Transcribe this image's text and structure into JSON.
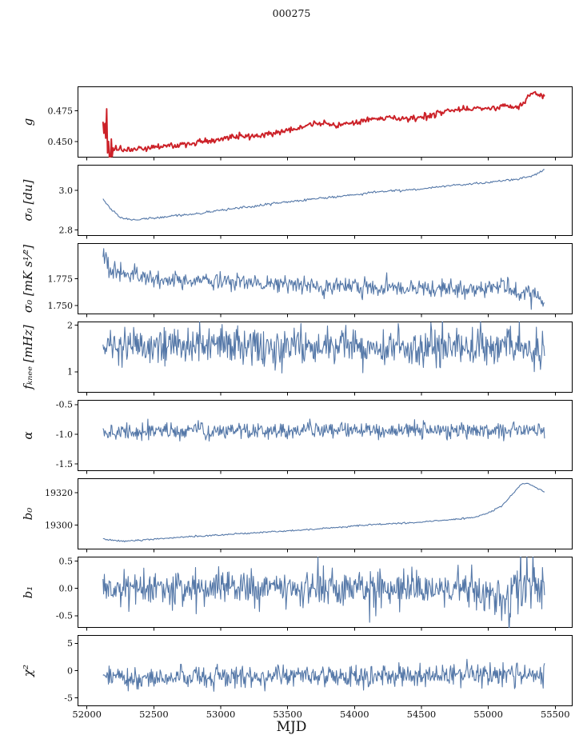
{
  "chart_data": {
    "type": "line",
    "title": "000275",
    "xlabel": "MJD",
    "xlim": [
      51930,
      55630
    ],
    "xticks": [
      52000,
      52500,
      53000,
      53500,
      54000,
      54500,
      55000,
      55500
    ],
    "xtick_labels": [
      "52000",
      "52500",
      "53000",
      "53500",
      "54000",
      "54500",
      "55000",
      "55500"
    ],
    "x_data_range": [
      52120,
      55420
    ],
    "panels": [
      {
        "name": "g",
        "ylabel": "g",
        "color": "#cc2128",
        "linewidth": 1.9,
        "ylim": [
          0.437,
          0.495
        ],
        "yticks": [
          0.475,
          0.45
        ],
        "ytick_labels": [
          "0.475",
          "0.450"
        ],
        "n": 480,
        "noise": 0.0012,
        "seed": 11,
        "noise_segments": [
          [
            52120,
            52195,
            0.009
          ]
        ],
        "trend": [
          [
            52120,
            0.46
          ],
          [
            52135,
            0.455
          ],
          [
            52160,
            0.449
          ],
          [
            52200,
            0.4445
          ],
          [
            52300,
            0.4425
          ],
          [
            52400,
            0.4435
          ],
          [
            52500,
            0.4455
          ],
          [
            52600,
            0.447
          ],
          [
            52700,
            0.4478
          ],
          [
            52800,
            0.4488
          ],
          [
            52900,
            0.4505
          ],
          [
            53000,
            0.4525
          ],
          [
            53100,
            0.454
          ],
          [
            53200,
            0.4545
          ],
          [
            53300,
            0.455
          ],
          [
            53400,
            0.457
          ],
          [
            53500,
            0.459
          ],
          [
            53600,
            0.462
          ],
          [
            53700,
            0.4645
          ],
          [
            53750,
            0.465
          ],
          [
            53850,
            0.464
          ],
          [
            53950,
            0.465
          ],
          [
            54050,
            0.4665
          ],
          [
            54150,
            0.469
          ],
          [
            54250,
            0.47
          ],
          [
            54350,
            0.468
          ],
          [
            54450,
            0.4688
          ],
          [
            54550,
            0.47
          ],
          [
            54650,
            0.4735
          ],
          [
            54750,
            0.476
          ],
          [
            54850,
            0.477
          ],
          [
            54950,
            0.4765
          ],
          [
            55050,
            0.4775
          ],
          [
            55100,
            0.479
          ],
          [
            55150,
            0.48
          ],
          [
            55200,
            0.4775
          ],
          [
            55250,
            0.479
          ],
          [
            55300,
            0.488
          ],
          [
            55350,
            0.489
          ],
          [
            55420,
            0.4865
          ]
        ]
      },
      {
        "name": "sigma0-du",
        "ylabel": "σ₀ [du]",
        "color": "#5578a8",
        "linewidth": 1.1,
        "ylim": [
          2.77,
          3.13
        ],
        "yticks": [
          3.0,
          2.8
        ],
        "ytick_labels": [
          "3.0",
          "2.8"
        ],
        "n": 430,
        "noise": 0.003,
        "seed": 22,
        "noise_segments": [],
        "trend": [
          [
            52120,
            2.955
          ],
          [
            52180,
            2.905
          ],
          [
            52250,
            2.862
          ],
          [
            52350,
            2.852
          ],
          [
            52450,
            2.858
          ],
          [
            52550,
            2.865
          ],
          [
            52650,
            2.872
          ],
          [
            52750,
            2.878
          ],
          [
            52850,
            2.885
          ],
          [
            52950,
            2.895
          ],
          [
            53050,
            2.905
          ],
          [
            53150,
            2.915
          ],
          [
            53250,
            2.92
          ],
          [
            53350,
            2.93
          ],
          [
            53450,
            2.938
          ],
          [
            53550,
            2.945
          ],
          [
            53650,
            2.955
          ],
          [
            53750,
            2.962
          ],
          [
            53850,
            2.965
          ],
          [
            53950,
            2.975
          ],
          [
            54050,
            2.982
          ],
          [
            54150,
            2.992
          ],
          [
            54250,
            2.998
          ],
          [
            54350,
            3.0
          ],
          [
            54450,
            3.005
          ],
          [
            54550,
            3.012
          ],
          [
            54650,
            3.02
          ],
          [
            54750,
            3.028
          ],
          [
            54850,
            3.03
          ],
          [
            54950,
            3.038
          ],
          [
            55050,
            3.045
          ],
          [
            55150,
            3.052
          ],
          [
            55250,
            3.06
          ],
          [
            55350,
            3.08
          ],
          [
            55420,
            3.105
          ]
        ]
      },
      {
        "name": "sigma0-mks",
        "ylabel": "σ₀ [mK s¹⁄²]",
        "color": "#5578a8",
        "linewidth": 1.1,
        "ylim": [
          1.742,
          1.808
        ],
        "yticks": [
          1.775,
          1.75
        ],
        "ytick_labels": [
          "1.775",
          "1.750"
        ],
        "n": 600,
        "noise": 0.004,
        "seed": 33,
        "noise_segments": [
          [
            52120,
            52160,
            0.008
          ]
        ],
        "trend": [
          [
            52120,
            1.803
          ],
          [
            52140,
            1.79
          ],
          [
            52170,
            1.778
          ],
          [
            52250,
            1.782
          ],
          [
            52350,
            1.778
          ],
          [
            52450,
            1.776
          ],
          [
            52600,
            1.774
          ],
          [
            52800,
            1.773
          ],
          [
            53000,
            1.772
          ],
          [
            53200,
            1.771
          ],
          [
            53400,
            1.77
          ],
          [
            53600,
            1.769
          ],
          [
            53800,
            1.768
          ],
          [
            54000,
            1.768
          ],
          [
            54200,
            1.767
          ],
          [
            54400,
            1.766
          ],
          [
            54600,
            1.766
          ],
          [
            54800,
            1.765
          ],
          [
            55000,
            1.766
          ],
          [
            55100,
            1.772
          ],
          [
            55150,
            1.765
          ],
          [
            55250,
            1.762
          ],
          [
            55350,
            1.76
          ],
          [
            55400,
            1.752
          ],
          [
            55420,
            1.758
          ]
        ]
      },
      {
        "name": "fknee",
        "ylabel": "fₖₙₑₑ [mHz]",
        "color": "#5578a8",
        "linewidth": 1.1,
        "ylim": [
          0.55,
          2.08
        ],
        "yticks": [
          2,
          1
        ],
        "ytick_labels": [
          "2",
          "1"
        ],
        "n": 650,
        "noise": 0.21,
        "seed": 44,
        "noise_segments": [],
        "trend": [
          [
            52120,
            1.55
          ],
          [
            53500,
            1.54
          ],
          [
            55420,
            1.52
          ]
        ]
      },
      {
        "name": "alpha",
        "ylabel": "α",
        "color": "#5578a8",
        "linewidth": 1.1,
        "ylim": [
          -1.62,
          -0.42
        ],
        "yticks": [
          -0.5,
          -1.0,
          -1.5
        ],
        "ytick_labels": [
          "-0.5",
          "-1.0",
          "-1.5"
        ],
        "n": 650,
        "noise": 0.07,
        "seed": 55,
        "noise_segments": [],
        "trend": [
          [
            52120,
            -0.95
          ],
          [
            53500,
            -0.94
          ],
          [
            55420,
            -0.93
          ]
        ]
      },
      {
        "name": "b0",
        "ylabel": "b₀",
        "color": "#5578a8",
        "linewidth": 1.1,
        "ylim": [
          19285,
          19329
        ],
        "yticks": [
          19320,
          19300
        ],
        "ytick_labels": [
          "19320",
          "19300"
        ],
        "n": 430,
        "noise": 0.25,
        "seed": 66,
        "noise_segments": [],
        "trend": [
          [
            52120,
            19291.5
          ],
          [
            52200,
            19290.5
          ],
          [
            52300,
            19290.2
          ],
          [
            52450,
            19291
          ],
          [
            52600,
            19292
          ],
          [
            52800,
            19293
          ],
          [
            53000,
            19294
          ],
          [
            53200,
            19295
          ],
          [
            53400,
            19296
          ],
          [
            53600,
            19297
          ],
          [
            53800,
            19298.2
          ],
          [
            54000,
            19299.5
          ],
          [
            54200,
            19300.5
          ],
          [
            54400,
            19301.5
          ],
          [
            54600,
            19302.5
          ],
          [
            54800,
            19304
          ],
          [
            54900,
            19305
          ],
          [
            55000,
            19307.5
          ],
          [
            55100,
            19312
          ],
          [
            55200,
            19321
          ],
          [
            55250,
            19325.5
          ],
          [
            55300,
            19326
          ],
          [
            55350,
            19323.5
          ],
          [
            55420,
            19320.5
          ]
        ]
      },
      {
        "name": "b1",
        "ylabel": "b₁",
        "color": "#5578a8",
        "linewidth": 1.1,
        "ylim": [
          -0.72,
          0.58
        ],
        "yticks": [
          0.5,
          0.0,
          -0.5
        ],
        "ytick_labels": [
          "0.5",
          "0.0",
          "-0.5"
        ],
        "n": 650,
        "noise": 0.17,
        "seed": 77,
        "noise_segments": [
          [
            55150,
            55420,
            0.3
          ]
        ],
        "trend": [
          [
            52120,
            0.05
          ],
          [
            52500,
            0.0
          ],
          [
            54800,
            0.0
          ],
          [
            55000,
            -0.1
          ],
          [
            55100,
            -0.25
          ],
          [
            55180,
            -0.1
          ],
          [
            55300,
            0.1
          ],
          [
            55420,
            0.15
          ]
        ]
      },
      {
        "name": "chi2",
        "ylabel": "χ²",
        "color": "#5578a8",
        "linewidth": 1.1,
        "ylim": [
          -6.5,
          6.5
        ],
        "yticks": [
          5,
          0,
          -5
        ],
        "ytick_labels": [
          "5",
          "0",
          "-5"
        ],
        "n": 650,
        "noise": 1.0,
        "seed": 88,
        "noise_segments": [],
        "trend": [
          [
            52120,
            -0.7
          ],
          [
            52250,
            -1.3
          ],
          [
            52350,
            -2.0
          ],
          [
            52450,
            -1.5
          ],
          [
            52600,
            -1.1
          ],
          [
            53000,
            -1.2
          ],
          [
            53500,
            -0.9
          ],
          [
            54000,
            -1.1
          ],
          [
            54500,
            -1.0
          ],
          [
            55000,
            -0.9
          ],
          [
            55420,
            -0.8
          ]
        ]
      }
    ]
  }
}
